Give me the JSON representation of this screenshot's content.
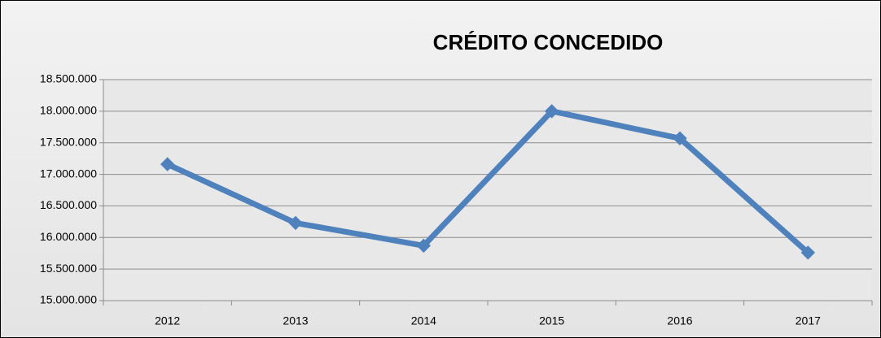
{
  "chart_data": {
    "type": "line",
    "title": "CRÉDITO CONCEDIDO",
    "categories": [
      "2012",
      "2013",
      "2014",
      "2015",
      "2016",
      "2017"
    ],
    "series": [
      {
        "name": "Crédito concedido",
        "color": "#4f81bd",
        "values": [
          17160000,
          16230000,
          15870000,
          18000000,
          17570000,
          15760000
        ]
      }
    ],
    "ylim": [
      15000000,
      18500000
    ],
    "yticks": [
      {
        "value": 15000000,
        "label": "15.000.000"
      },
      {
        "value": 15500000,
        "label": "15.500.000"
      },
      {
        "value": 16000000,
        "label": "16.000.000"
      },
      {
        "value": 16500000,
        "label": "16.500.000"
      },
      {
        "value": 17000000,
        "label": "17.000.000"
      },
      {
        "value": 17500000,
        "label": "17.500.000"
      },
      {
        "value": 18000000,
        "label": "18.000.000"
      },
      {
        "value": 18500000,
        "label": "18.500.000"
      }
    ],
    "grid": true
  }
}
